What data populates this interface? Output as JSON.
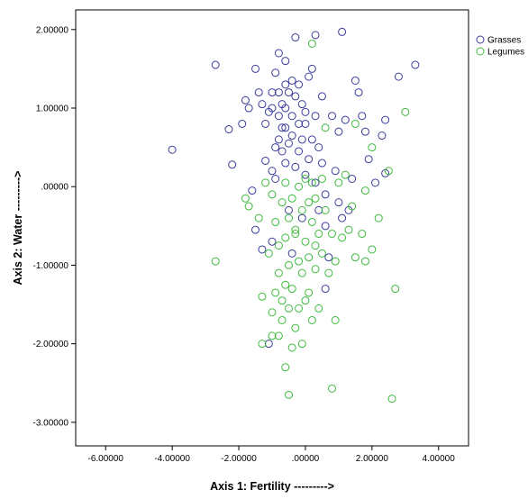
{
  "chart_data": {
    "type": "scatter",
    "xlabel": "Axis 1: Fertility --------->",
    "ylabel": "Axis 2: Water --------->",
    "xlim": [
      -6.9,
      4.9
    ],
    "ylim": [
      -3.3,
      2.25
    ],
    "x_ticks": [
      -6,
      -4,
      -2,
      0,
      2,
      4
    ],
    "x_tick_labels": [
      "-6.00000",
      "-4.00000",
      "-2.00000",
      ".00000",
      "2.00000",
      "4.00000"
    ],
    "y_ticks": [
      2,
      1,
      0,
      -1,
      -2,
      -3
    ],
    "y_tick_labels": [
      "2.00000",
      "1.00000",
      ".00000",
      "-1.00000",
      "-2.00000",
      "-3.00000"
    ],
    "grid": false,
    "legend_position": "top-right",
    "series": [
      {
        "name": "Grasses",
        "color": "#3a3d9c",
        "points": [
          [
            -4.0,
            0.47
          ],
          [
            -2.7,
            1.55
          ],
          [
            -2.3,
            0.73
          ],
          [
            -2.2,
            0.28
          ],
          [
            -1.9,
            0.8
          ],
          [
            -1.8,
            1.1
          ],
          [
            -1.7,
            1.0
          ],
          [
            -1.6,
            -0.05
          ],
          [
            -1.5,
            1.5
          ],
          [
            -1.4,
            1.2
          ],
          [
            -1.3,
            1.05
          ],
          [
            -1.3,
            -0.8
          ],
          [
            -1.2,
            0.8
          ],
          [
            -1.2,
            0.33
          ],
          [
            -1.1,
            0.95
          ],
          [
            -1.0,
            1.2
          ],
          [
            -1.0,
            1.0
          ],
          [
            -1.0,
            0.2
          ],
          [
            -1.0,
            -0.7
          ],
          [
            -0.9,
            1.45
          ],
          [
            -0.9,
            0.5
          ],
          [
            -0.9,
            0.1
          ],
          [
            -0.8,
            1.7
          ],
          [
            -0.8,
            1.2
          ],
          [
            -0.8,
            0.9
          ],
          [
            -0.8,
            0.6
          ],
          [
            -0.7,
            1.05
          ],
          [
            -0.7,
            0.75
          ],
          [
            -0.7,
            0.45
          ],
          [
            -0.6,
            1.6
          ],
          [
            -0.6,
            1.3
          ],
          [
            -0.6,
            1.0
          ],
          [
            -0.6,
            0.75
          ],
          [
            -0.6,
            0.3
          ],
          [
            -0.5,
            1.2
          ],
          [
            -0.5,
            0.55
          ],
          [
            -0.5,
            -0.3
          ],
          [
            -0.4,
            1.35
          ],
          [
            -0.4,
            0.9
          ],
          [
            -0.4,
            0.65
          ],
          [
            -0.3,
            1.9
          ],
          [
            -0.3,
            1.15
          ],
          [
            -0.3,
            0.25
          ],
          [
            -0.2,
            1.3
          ],
          [
            -0.2,
            0.8
          ],
          [
            -0.2,
            0.45
          ],
          [
            -0.1,
            1.05
          ],
          [
            -0.1,
            0.6
          ],
          [
            -0.1,
            -0.4
          ],
          [
            0.0,
            0.95
          ],
          [
            0.0,
            0.8
          ],
          [
            0.0,
            0.15
          ],
          [
            0.1,
            1.4
          ],
          [
            0.1,
            0.35
          ],
          [
            0.2,
            1.5
          ],
          [
            0.2,
            0.6
          ],
          [
            0.3,
            1.93
          ],
          [
            0.3,
            0.9
          ],
          [
            0.3,
            0.05
          ],
          [
            0.4,
            0.5
          ],
          [
            0.4,
            -0.3
          ],
          [
            0.5,
            1.15
          ],
          [
            0.5,
            0.3
          ],
          [
            0.6,
            -0.1
          ],
          [
            0.6,
            -0.5
          ],
          [
            0.7,
            -0.9
          ],
          [
            0.8,
            0.9
          ],
          [
            0.9,
            0.2
          ],
          [
            1.0,
            0.7
          ],
          [
            1.0,
            -0.2
          ],
          [
            1.1,
            1.97
          ],
          [
            1.1,
            -0.4
          ],
          [
            1.2,
            0.85
          ],
          [
            1.3,
            -0.3
          ],
          [
            1.4,
            0.1
          ],
          [
            1.5,
            1.35
          ],
          [
            1.6,
            1.2
          ],
          [
            1.7,
            0.9
          ],
          [
            1.8,
            0.7
          ],
          [
            1.9,
            0.35
          ],
          [
            2.1,
            0.05
          ],
          [
            2.3,
            0.65
          ],
          [
            2.4,
            0.85
          ],
          [
            2.4,
            0.17
          ],
          [
            2.8,
            1.4
          ],
          [
            3.3,
            1.55
          ],
          [
            -1.5,
            -0.55
          ],
          [
            -1.1,
            -2.0
          ],
          [
            -0.4,
            -0.85
          ],
          [
            0.6,
            -1.3
          ]
        ]
      },
      {
        "name": "Legumes",
        "color": "#3dbb3d",
        "points": [
          [
            -2.7,
            -0.95
          ],
          [
            -1.7,
            -0.25
          ],
          [
            -1.4,
            -0.4
          ],
          [
            -1.3,
            -1.4
          ],
          [
            -1.3,
            -2.0
          ],
          [
            -1.2,
            0.05
          ],
          [
            -1.1,
            -0.85
          ],
          [
            -1.0,
            -1.6
          ],
          [
            -1.0,
            -1.9
          ],
          [
            -0.9,
            -0.45
          ],
          [
            -0.9,
            -1.35
          ],
          [
            -0.8,
            -0.75
          ],
          [
            -0.8,
            -1.1
          ],
          [
            -0.8,
            -1.9
          ],
          [
            -0.7,
            -0.2
          ],
          [
            -0.7,
            -1.45
          ],
          [
            -0.7,
            -1.7
          ],
          [
            -0.6,
            0.05
          ],
          [
            -0.6,
            -0.65
          ],
          [
            -0.6,
            -1.25
          ],
          [
            -0.6,
            -2.3
          ],
          [
            -0.5,
            -0.4
          ],
          [
            -0.5,
            -1.0
          ],
          [
            -0.5,
            -1.55
          ],
          [
            -0.5,
            -2.65
          ],
          [
            -0.4,
            -0.15
          ],
          [
            -0.4,
            -1.3
          ],
          [
            -0.4,
            -2.05
          ],
          [
            -0.3,
            -0.6
          ],
          [
            -0.3,
            -1.8
          ],
          [
            -0.2,
            0.0
          ],
          [
            -0.2,
            -0.95
          ],
          [
            -0.2,
            -1.55
          ],
          [
            -0.1,
            -0.3
          ],
          [
            -0.1,
            -1.1
          ],
          [
            -0.1,
            -2.0
          ],
          [
            0.0,
            0.1
          ],
          [
            0.0,
            -0.7
          ],
          [
            0.0,
            -1.45
          ],
          [
            0.1,
            -0.2
          ],
          [
            0.1,
            -0.9
          ],
          [
            0.1,
            -1.35
          ],
          [
            0.2,
            1.82
          ],
          [
            0.2,
            0.05
          ],
          [
            0.2,
            -0.45
          ],
          [
            0.2,
            -1.7
          ],
          [
            0.3,
            -0.15
          ],
          [
            0.3,
            -1.05
          ],
          [
            0.4,
            -0.6
          ],
          [
            0.4,
            -1.55
          ],
          [
            0.5,
            0.1
          ],
          [
            0.5,
            -0.85
          ],
          [
            0.6,
            0.75
          ],
          [
            0.6,
            -0.3
          ],
          [
            0.7,
            -1.1
          ],
          [
            0.8,
            -0.6
          ],
          [
            0.8,
            -2.57
          ],
          [
            0.9,
            -0.95
          ],
          [
            0.9,
            -1.7
          ],
          [
            1.0,
            0.05
          ],
          [
            1.1,
            -0.65
          ],
          [
            1.2,
            0.15
          ],
          [
            1.3,
            -0.55
          ],
          [
            1.4,
            -0.25
          ],
          [
            1.5,
            0.8
          ],
          [
            1.5,
            -0.9
          ],
          [
            1.7,
            -0.6
          ],
          [
            1.8,
            -0.95
          ],
          [
            1.8,
            -0.05
          ],
          [
            2.0,
            0.5
          ],
          [
            2.0,
            -0.8
          ],
          [
            2.2,
            -0.4
          ],
          [
            2.5,
            0.2
          ],
          [
            2.6,
            -2.7
          ],
          [
            2.7,
            -1.3
          ],
          [
            3.0,
            0.95
          ],
          [
            -1.8,
            -0.15
          ],
          [
            -1.0,
            -0.1
          ],
          [
            -0.3,
            -0.55
          ],
          [
            0.3,
            -0.75
          ]
        ]
      }
    ]
  }
}
